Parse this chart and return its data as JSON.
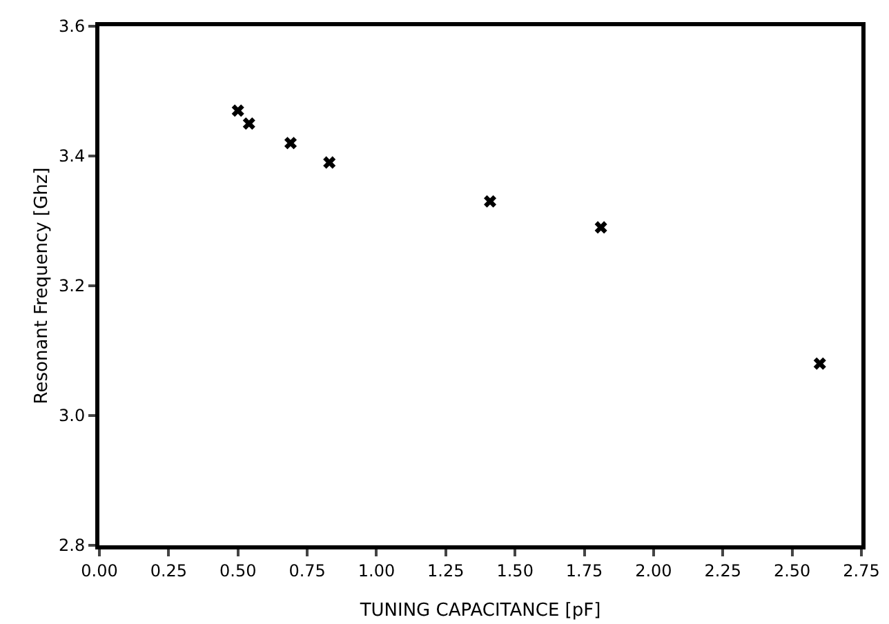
{
  "chart_data": {
    "type": "scatter",
    "xlabel": "TUNING CAPACITANCE [pF]",
    "ylabel": "Resonant Frequency [Ghz]",
    "x": [
      0.5,
      0.54,
      0.69,
      0.83,
      1.41,
      1.81,
      2.6
    ],
    "values": [
      3.47,
      3.45,
      3.42,
      3.39,
      3.33,
      3.29,
      3.08
    ],
    "color": "#000000",
    "marker": "cross",
    "xlim": [
      0,
      2.75
    ],
    "xticks": [
      {
        "value": 0,
        "label": "0.00"
      },
      {
        "value": 0.25,
        "label": "0.25"
      },
      {
        "value": 0.5,
        "label": "0.50"
      },
      {
        "value": 0.75,
        "label": "0.75"
      },
      {
        "value": 1,
        "label": "1.00"
      },
      {
        "value": 1.25,
        "label": "1.25"
      },
      {
        "value": 1.5,
        "label": "1.50"
      },
      {
        "value": 1.75,
        "label": "1.75"
      },
      {
        "value": 2,
        "label": "2.00"
      },
      {
        "value": 2.25,
        "label": "2.25"
      },
      {
        "value": 2.5,
        "label": "2.50"
      },
      {
        "value": 2.75,
        "label": "2.75"
      }
    ],
    "ylim": [
      2.8,
      3.6
    ],
    "yticks": [
      2.8,
      {
        "value": 3,
        "label": "3.0"
      },
      3.2,
      3.4,
      3.6
    ],
    "grid": false,
    "legend": false
  }
}
